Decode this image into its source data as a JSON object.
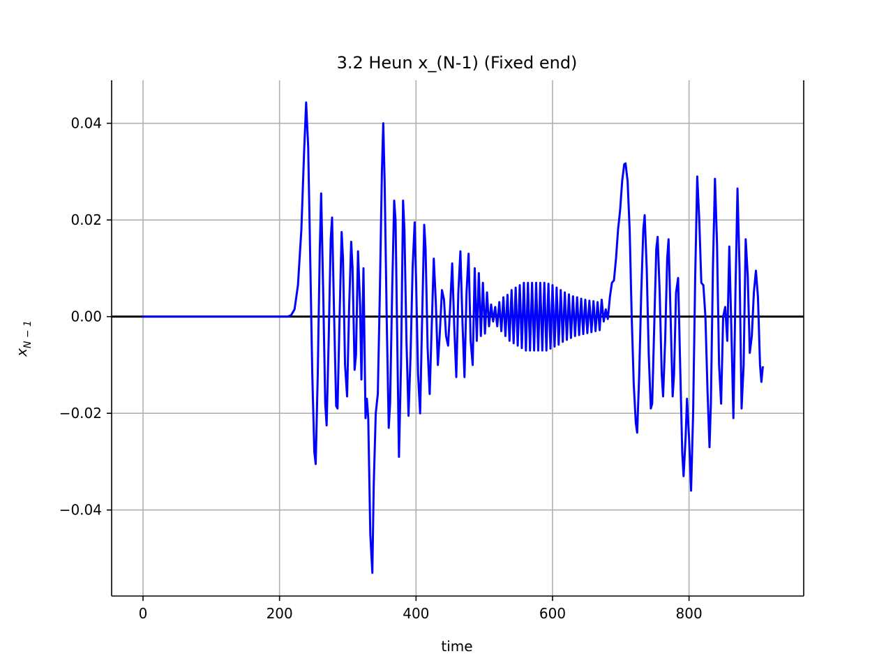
{
  "chart_data": {
    "type": "line",
    "title": "3.2 Heun x_(N-1) (Fixed end)",
    "xlabel": "time",
    "ylabel": "x_{N-1}",
    "ylabel_display": {
      "base": "x",
      "sub": "N − 1"
    },
    "xlim": [
      -46,
      968
    ],
    "ylim": [
      -0.0578,
      0.0489
    ],
    "xticks": [
      0,
      200,
      400,
      600,
      800
    ],
    "xtick_labels": [
      "0",
      "200",
      "400",
      "600",
      "800"
    ],
    "yticks": [
      -0.04,
      -0.02,
      0.0,
      0.02,
      0.04
    ],
    "ytick_labels": [
      "−0.04",
      "−0.02",
      "0.00",
      "0.02",
      "0.04"
    ],
    "grid": true,
    "spines": [
      "left",
      "right",
      "bottom"
    ],
    "reference_line": {
      "y": 0.0,
      "color": "#000000"
    },
    "series": [
      {
        "color": "#0000ff",
        "points": [
          [
            0,
            0.0
          ],
          [
            100,
            0.0
          ],
          [
            200,
            0.0
          ],
          [
            212,
            0.0
          ],
          [
            217,
            0.0003
          ],
          [
            222,
            0.0015
          ],
          [
            227,
            0.0065
          ],
          [
            232,
            0.018
          ],
          [
            236,
            0.034
          ],
          [
            239,
            0.0443
          ],
          [
            242,
            0.035
          ],
          [
            245,
            0.012
          ],
          [
            248,
            -0.012
          ],
          [
            251,
            -0.028
          ],
          [
            253,
            -0.0305
          ],
          [
            256,
            -0.012
          ],
          [
            259,
            0.014
          ],
          [
            261,
            0.0255
          ],
          [
            264,
            0.005
          ],
          [
            267,
            -0.018
          ],
          [
            269,
            -0.0225
          ],
          [
            272,
            -0.005
          ],
          [
            275,
            0.016
          ],
          [
            277,
            0.0205
          ],
          [
            280,
            0.0
          ],
          [
            283,
            -0.0185
          ],
          [
            285,
            -0.019
          ],
          [
            288,
            0.0
          ],
          [
            291,
            0.0175
          ],
          [
            293,
            0.012
          ],
          [
            296,
            -0.01
          ],
          [
            299,
            -0.0165
          ],
          [
            302,
            0.002
          ],
          [
            305,
            0.0155
          ],
          [
            307,
            0.01
          ],
          [
            310,
            -0.011
          ],
          [
            312,
            -0.008
          ],
          [
            315,
            0.0135
          ],
          [
            318,
            0.0025
          ],
          [
            320,
            -0.013
          ],
          [
            323,
            0.01
          ],
          [
            326,
            -0.021
          ],
          [
            328,
            -0.017
          ],
          [
            330,
            -0.021
          ],
          [
            333,
            -0.045
          ],
          [
            336,
            -0.053
          ],
          [
            338,
            -0.035
          ],
          [
            341,
            -0.02
          ],
          [
            344,
            -0.016
          ],
          [
            347,
            0.005
          ],
          [
            350,
            0.03
          ],
          [
            352,
            0.04
          ],
          [
            354,
            0.028
          ],
          [
            357,
            0.0
          ],
          [
            360,
            -0.023
          ],
          [
            362,
            -0.018
          ],
          [
            365,
            0.005
          ],
          [
            368,
            0.024
          ],
          [
            370,
            0.02
          ],
          [
            373,
            -0.01
          ],
          [
            375,
            -0.029
          ],
          [
            378,
            -0.01
          ],
          [
            381,
            0.024
          ],
          [
            383,
            0.018
          ],
          [
            386,
            -0.005
          ],
          [
            389,
            -0.0205
          ],
          [
            392,
            -0.008
          ],
          [
            395,
            0.01
          ],
          [
            398,
            0.0195
          ],
          [
            400,
            0.008
          ],
          [
            403,
            -0.012
          ],
          [
            406,
            -0.02
          ],
          [
            409,
            0.0
          ],
          [
            412,
            0.019
          ],
          [
            414,
            0.014
          ],
          [
            417,
            -0.0065
          ],
          [
            420,
            -0.016
          ],
          [
            423,
            -0.002
          ],
          [
            426,
            0.012
          ],
          [
            429,
            0.003
          ],
          [
            432,
            -0.01
          ],
          [
            435,
            -0.003
          ],
          [
            438,
            0.0055
          ],
          [
            441,
            0.0035
          ],
          [
            444,
            -0.004
          ],
          [
            447,
            -0.006
          ],
          [
            450,
            0.002
          ],
          [
            453,
            0.011
          ],
          [
            456,
            -0.002
          ],
          [
            459,
            -0.0125
          ],
          [
            462,
            0.005
          ],
          [
            465,
            0.0135
          ],
          [
            468,
            -0.001
          ],
          [
            471,
            -0.0125
          ],
          [
            474,
            0.005
          ],
          [
            477,
            0.013
          ],
          [
            480,
            -0.005
          ],
          [
            483,
            -0.01
          ],
          [
            486,
            0.01
          ],
          [
            489,
            -0.005
          ],
          [
            492,
            0.009
          ],
          [
            495,
            -0.004
          ],
          [
            498,
            0.007
          ],
          [
            501,
            -0.0035
          ],
          [
            504,
            0.005
          ],
          [
            507,
            -0.002
          ],
          [
            510,
            0.0025
          ],
          [
            513,
            -0.001
          ],
          [
            516,
            0.002
          ],
          [
            519,
            -0.002
          ],
          [
            522,
            0.003
          ],
          [
            525,
            -0.003
          ],
          [
            528,
            0.004
          ],
          [
            531,
            -0.004
          ],
          [
            534,
            0.0045
          ],
          [
            537,
            -0.005
          ],
          [
            540,
            0.0055
          ],
          [
            543,
            -0.0055
          ],
          [
            546,
            0.006
          ],
          [
            549,
            -0.006
          ],
          [
            552,
            0.0065
          ],
          [
            555,
            -0.0065
          ],
          [
            558,
            0.007
          ],
          [
            561,
            -0.007
          ],
          [
            564,
            0.007
          ],
          [
            567,
            -0.007
          ],
          [
            570,
            0.007
          ],
          [
            573,
            -0.007
          ],
          [
            576,
            0.007
          ],
          [
            579,
            -0.007
          ],
          [
            582,
            0.007
          ],
          [
            585,
            -0.007
          ],
          [
            588,
            0.007
          ],
          [
            591,
            -0.007
          ],
          [
            594,
            0.0068
          ],
          [
            597,
            -0.0066
          ],
          [
            600,
            0.0065
          ],
          [
            603,
            -0.0062
          ],
          [
            606,
            0.006
          ],
          [
            609,
            -0.0058
          ],
          [
            612,
            0.0055
          ],
          [
            615,
            -0.0052
          ],
          [
            618,
            0.005
          ],
          [
            621,
            -0.0048
          ],
          [
            624,
            0.0046
          ],
          [
            627,
            -0.0044
          ],
          [
            630,
            0.0042
          ],
          [
            633,
            -0.004
          ],
          [
            636,
            0.004
          ],
          [
            639,
            -0.0038
          ],
          [
            642,
            0.0037
          ],
          [
            645,
            -0.0036
          ],
          [
            648,
            0.0035
          ],
          [
            651,
            -0.0034
          ],
          [
            654,
            0.0033
          ],
          [
            657,
            -0.0032
          ],
          [
            660,
            0.0032
          ],
          [
            663,
            -0.003
          ],
          [
            666,
            0.003
          ],
          [
            669,
            -0.0028
          ],
          [
            672,
            0.0035
          ],
          [
            675,
            -0.001
          ],
          [
            678,
            0.0015
          ],
          [
            681,
            -0.0005
          ],
          [
            684,
            0.004
          ],
          [
            687,
            0.007
          ],
          [
            690,
            0.0075
          ],
          [
            693,
            0.012
          ],
          [
            696,
            0.018
          ],
          [
            699,
            0.022
          ],
          [
            702,
            0.028
          ],
          [
            705,
            0.0315
          ],
          [
            707,
            0.0317
          ],
          [
            710,
            0.028
          ],
          [
            713,
            0.018
          ],
          [
            716,
            0.0
          ],
          [
            719,
            -0.014
          ],
          [
            722,
            -0.022
          ],
          [
            724,
            -0.024
          ],
          [
            727,
            -0.012
          ],
          [
            730,
            0.005
          ],
          [
            733,
            0.018
          ],
          [
            735,
            0.021
          ],
          [
            738,
            0.01
          ],
          [
            741,
            -0.008
          ],
          [
            744,
            -0.019
          ],
          [
            746,
            -0.018
          ],
          [
            749,
            -0.002
          ],
          [
            752,
            0.014
          ],
          [
            754,
            0.0165
          ],
          [
            757,
            0.005
          ],
          [
            760,
            -0.012
          ],
          [
            762,
            -0.0165
          ],
          [
            765,
            -0.005
          ],
          [
            768,
            0.012
          ],
          [
            770,
            0.016
          ],
          [
            773,
            0.0
          ],
          [
            776,
            -0.0165
          ],
          [
            778,
            -0.012
          ],
          [
            781,
            0.005
          ],
          [
            784,
            0.008
          ],
          [
            787,
            -0.01
          ],
          [
            790,
            -0.028
          ],
          [
            792,
            -0.033
          ],
          [
            795,
            -0.025
          ],
          [
            797,
            -0.017
          ],
          [
            800,
            -0.025
          ],
          [
            803,
            -0.036
          ],
          [
            806,
            -0.02
          ],
          [
            809,
            0.008
          ],
          [
            812,
            0.029
          ],
          [
            815,
            0.02
          ],
          [
            818,
            0.007
          ],
          [
            821,
            0.0065
          ],
          [
            824,
            0.0
          ],
          [
            827,
            -0.015
          ],
          [
            830,
            -0.027
          ],
          [
            832,
            -0.018
          ],
          [
            835,
            0.01
          ],
          [
            838,
            0.0285
          ],
          [
            841,
            0.015
          ],
          [
            844,
            -0.01
          ],
          [
            847,
            -0.018
          ],
          [
            850,
            0.0
          ],
          [
            853,
            0.002
          ],
          [
            856,
            -0.005
          ],
          [
            859,
            0.0145
          ],
          [
            862,
            -0.0025
          ],
          [
            865,
            -0.021
          ],
          [
            868,
            0.005
          ],
          [
            871,
            0.0265
          ],
          [
            874,
            0.01
          ],
          [
            877,
            -0.019
          ],
          [
            880,
            -0.01
          ],
          [
            883,
            0.016
          ],
          [
            886,
            0.0085
          ],
          [
            889,
            -0.0075
          ],
          [
            892,
            -0.004
          ],
          [
            895,
            0.005
          ],
          [
            898,
            0.0095
          ],
          [
            901,
            0.004
          ],
          [
            904,
            -0.01
          ],
          [
            906,
            -0.0135
          ],
          [
            908,
            -0.0105
          ]
        ]
      }
    ]
  }
}
